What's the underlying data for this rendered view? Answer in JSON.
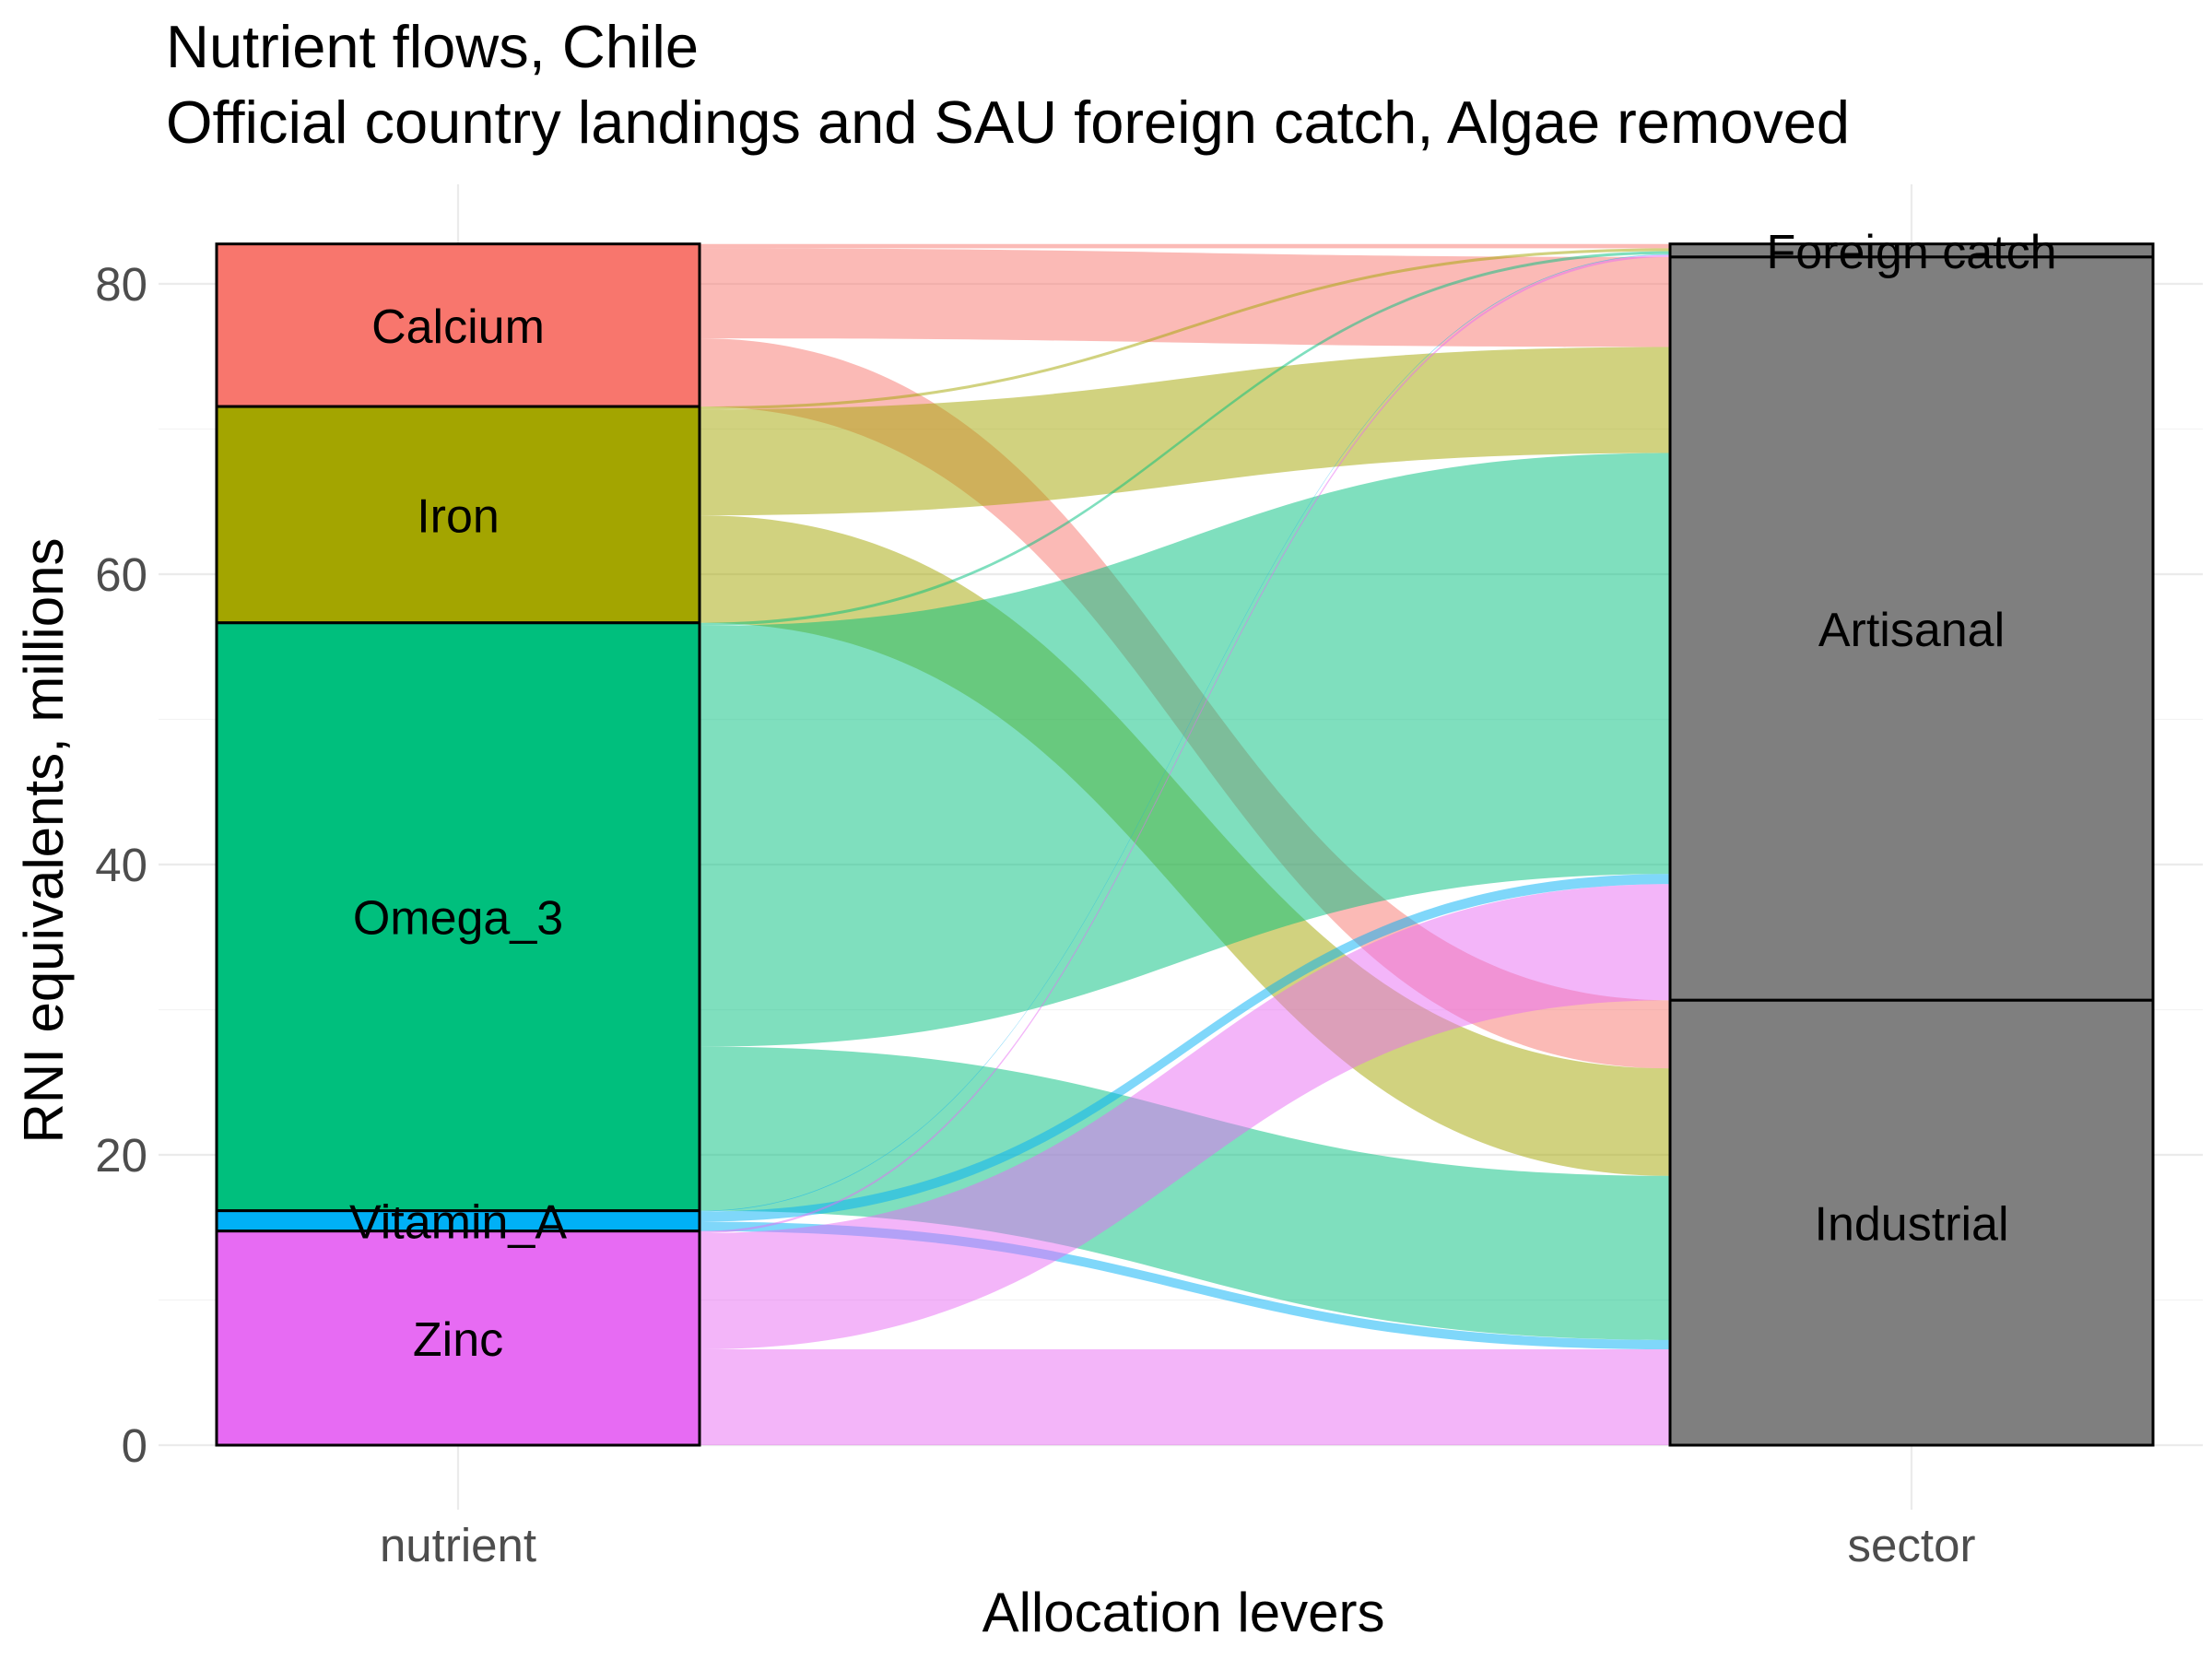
{
  "chart_data": {
    "type": "alluvial",
    "title": "Nutrient flows, Chile",
    "subtitle": "Official country landings and SAU foreign catch, Algae removed",
    "xlabel": "Allocation levers",
    "ylabel": "RNI equivalents, millions",
    "axes": [
      "nutrient",
      "sector"
    ],
    "ylim": [
      0,
      83
    ],
    "yticks": [
      0,
      20,
      40,
      60,
      80
    ],
    "grid": true,
    "nutrients": [
      {
        "name": "Calcium",
        "color": "#F8766D"
      },
      {
        "name": "Iron",
        "color": "#A3A500"
      },
      {
        "name": "Omega_3",
        "color": "#00BF7D"
      },
      {
        "name": "Vitamin_A",
        "color": "#00B0F6"
      },
      {
        "name": "Zinc",
        "color": "#E76BF3"
      }
    ],
    "sectors": [
      {
        "name": "Foreign catch",
        "color": "#7f7f7f"
      },
      {
        "name": "Artisanal",
        "color": "#7f7f7f"
      },
      {
        "name": "Industrial",
        "color": "#7f7f7f"
      }
    ],
    "flows": [
      {
        "nutrient": "Calcium",
        "sector": "Foreign catch",
        "value": 0.3
      },
      {
        "nutrient": "Calcium",
        "sector": "Artisanal",
        "value": 6.2
      },
      {
        "nutrient": "Calcium",
        "sector": "Industrial",
        "value": 4.7
      },
      {
        "nutrient": "Iron",
        "sector": "Foreign catch",
        "value": 0.2
      },
      {
        "nutrient": "Iron",
        "sector": "Artisanal",
        "value": 7.3
      },
      {
        "nutrient": "Iron",
        "sector": "Industrial",
        "value": 7.4
      },
      {
        "nutrient": "Omega_3",
        "sector": "Foreign catch",
        "value": 0.2
      },
      {
        "nutrient": "Omega_3",
        "sector": "Artisanal",
        "value": 29.0
      },
      {
        "nutrient": "Omega_3",
        "sector": "Industrial",
        "value": 11.3
      },
      {
        "nutrient": "Vitamin_A",
        "sector": "Foreign catch",
        "value": 0.05
      },
      {
        "nutrient": "Vitamin_A",
        "sector": "Artisanal",
        "value": 0.7
      },
      {
        "nutrient": "Vitamin_A",
        "sector": "Industrial",
        "value": 0.65
      },
      {
        "nutrient": "Zinc",
        "sector": "Foreign catch",
        "value": 0.15
      },
      {
        "nutrient": "Zinc",
        "sector": "Artisanal",
        "value": 8.0
      },
      {
        "nutrient": "Zinc",
        "sector": "Industrial",
        "value": 6.6
      }
    ]
  }
}
